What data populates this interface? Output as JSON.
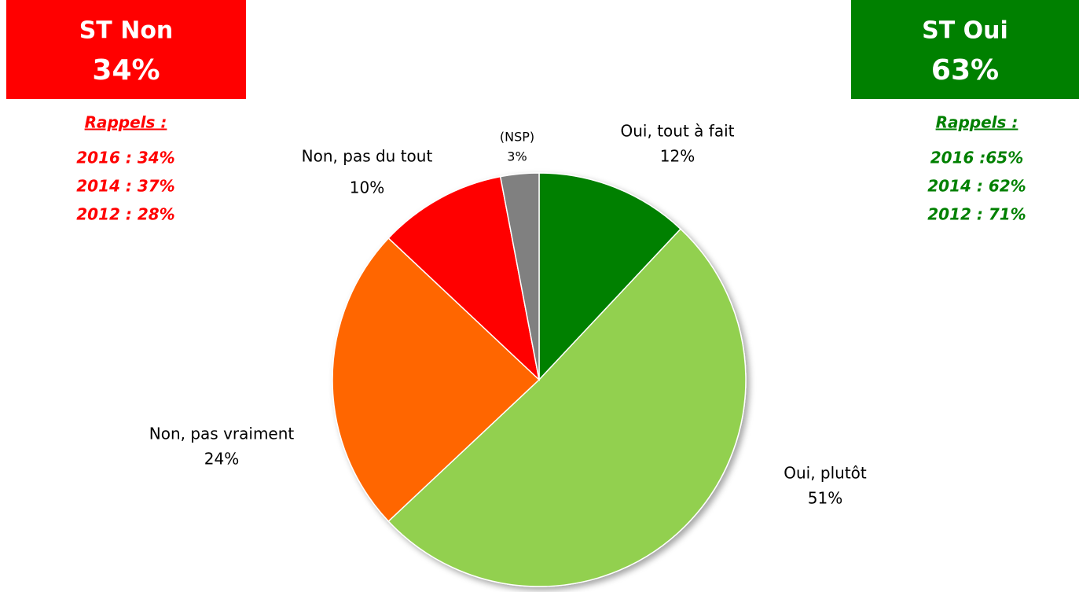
{
  "chart_data": {
    "type": "pie",
    "categories": [
      "Oui, tout à fait",
      "Oui, plutôt",
      "Non, pas vraiment",
      "Non, pas du tout",
      "(NSP)"
    ],
    "values": [
      12,
      51,
      24,
      10,
      3
    ],
    "value_labels": [
      "12%",
      "51%",
      "24%",
      "10%",
      "3%"
    ],
    "colors": [
      "#008000",
      "#92d050",
      "#ff6600",
      "#ff0000",
      "#808080"
    ],
    "annotations": [
      {
        "title": "ST Non",
        "value_label": "34%",
        "color": "#ff0000",
        "recall_title": "Rappels :",
        "recalls": [
          "2016 : 34%",
          "2014 : 37%",
          "2012 : 28%"
        ]
      },
      {
        "title": "ST Oui",
        "value_label": "63%",
        "color": "#008000",
        "recall_title": "Rappels :",
        "recalls": [
          "2016 :65%",
          "2014 : 62%",
          "2012 : 71%"
        ]
      }
    ]
  }
}
